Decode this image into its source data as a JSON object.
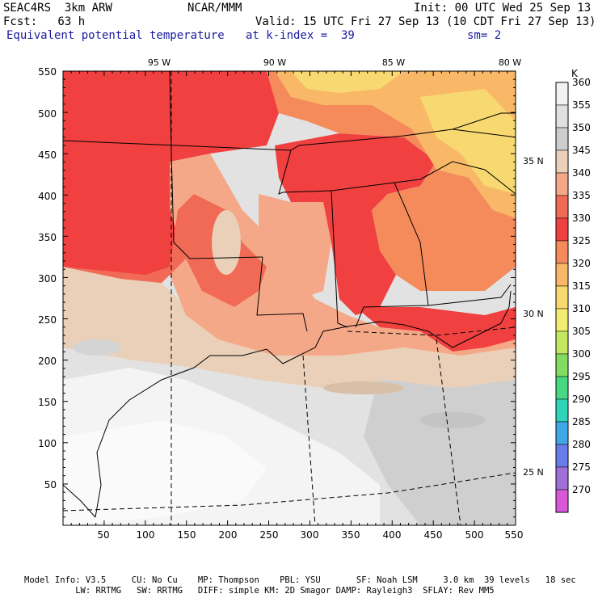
{
  "header": {
    "model": "SEAC4RS  3km ARW",
    "center": "NCAR/MMM",
    "init": "Init: 00 UTC Wed 25 Sep 13",
    "fcst": "Fcst:   63 h",
    "valid": "Valid: 15 UTC Fri 27 Sep 13 (10 CDT Fri 27 Sep 13)",
    "field": "Equivalent potential temperature",
    "level": "at k-index =  39",
    "smooth": "sm= 2"
  },
  "map": {
    "x_ticks": [
      "50",
      "100",
      "150",
      "200",
      "250",
      "300",
      "350",
      "400",
      "450",
      "500",
      "550"
    ],
    "y_ticks": [
      "550",
      "500",
      "450",
      "400",
      "350",
      "300",
      "250",
      "200",
      "150",
      "100",
      "50"
    ],
    "lon_labels": [
      "95 W",
      "90 W",
      "85 W",
      "80 W"
    ],
    "lat_labels": [
      "35 N",
      "30 N",
      "25 N"
    ]
  },
  "colorbar": {
    "unit": "K",
    "levels": [
      {
        "label": "360",
        "color": "#f2f2f2"
      },
      {
        "label": "355",
        "color": "#e0e0e0"
      },
      {
        "label": "350",
        "color": "#cdcdcd"
      },
      {
        "label": "345",
        "color": "#ead0b8"
      },
      {
        "label": "340",
        "color": "#f5a888"
      },
      {
        "label": "335",
        "color": "#f06a55"
      },
      {
        "label": "330",
        "color": "#f04040"
      },
      {
        "label": "325",
        "color": "#f58a5a"
      },
      {
        "label": "320",
        "color": "#f8b868"
      },
      {
        "label": "315",
        "color": "#f8d870"
      },
      {
        "label": "310",
        "color": "#f2ec70"
      },
      {
        "label": "305",
        "color": "#c4e862"
      },
      {
        "label": "300",
        "color": "#82dc62"
      },
      {
        "label": "295",
        "color": "#48d884"
      },
      {
        "label": "290",
        "color": "#30d4b8"
      },
      {
        "label": "285",
        "color": "#40a8e8"
      },
      {
        "label": "280",
        "color": "#6a7ce8"
      },
      {
        "label": "275",
        "color": "#a070d8"
      },
      {
        "label": "270",
        "color": "#d858d8"
      }
    ]
  },
  "footer": {
    "line1": "Model Info: V3.5     CU: No Cu    MP: Thompson    PBL: YSU       SF: Noah LSM     3.0 km  39 levels   18 sec",
    "line2": "          LW: RRTMG   SW: RRTMG   DIFF: simple KM: 2D Smagor DAMP: Rayleigh3  SFLAY: Rev MM5"
  }
}
